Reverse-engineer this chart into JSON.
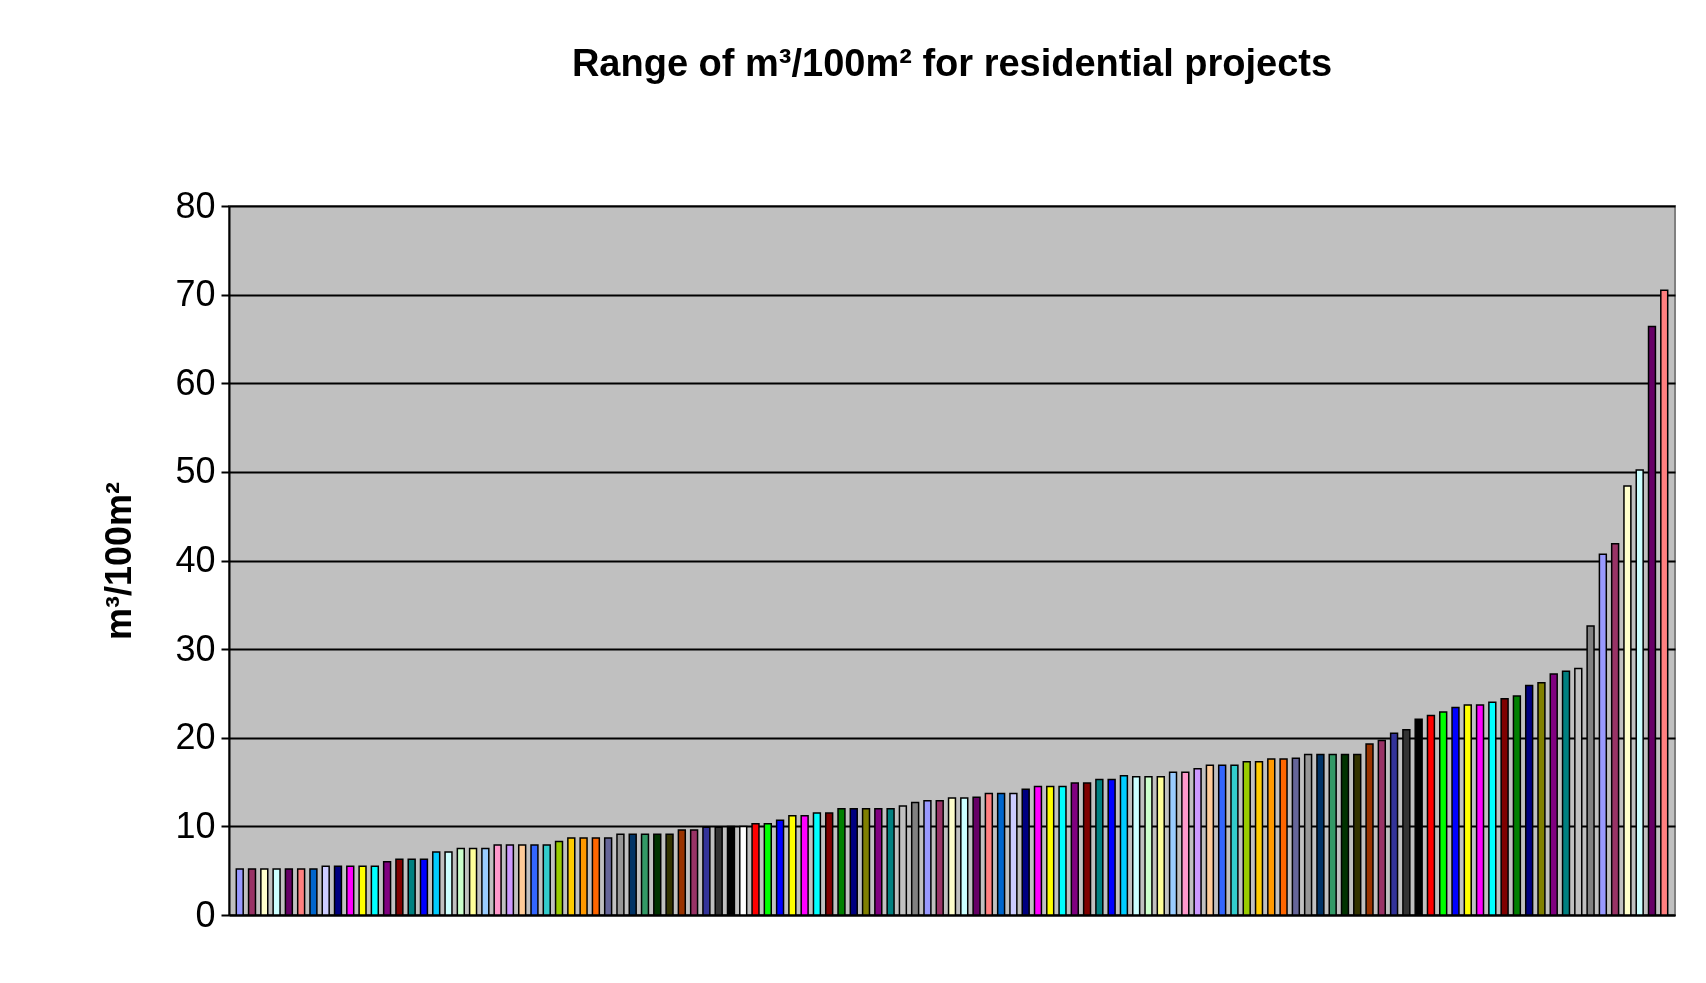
{
  "chart_data": {
    "type": "bar",
    "title": "Range of m³/100m² for residential projects",
    "ylabel": "m³/100m²",
    "categories": [
      null,
      null,
      null,
      null,
      null,
      null,
      null,
      null,
      null,
      null,
      null,
      null,
      null,
      null,
      null,
      null,
      null,
      null,
      null,
      null,
      null,
      null,
      null,
      null,
      null,
      null,
      null,
      null,
      null,
      null,
      null,
      null,
      null,
      null,
      null,
      null,
      null,
      null,
      null,
      null,
      null,
      null,
      null,
      null,
      null,
      null,
      null,
      null,
      null,
      null,
      null,
      null,
      null,
      null,
      null,
      null,
      null,
      null,
      null,
      null,
      null,
      null,
      null,
      null,
      null,
      null,
      null,
      null,
      null,
      null,
      null,
      null,
      null,
      null,
      null,
      null,
      null,
      null,
      null,
      null,
      null,
      null,
      null,
      null,
      null,
      null,
      null,
      null,
      null,
      null,
      null,
      null,
      null,
      null,
      null,
      null,
      null,
      null,
      null,
      null,
      null,
      null,
      null,
      null,
      null,
      null,
      null,
      null,
      null,
      null,
      null,
      null,
      null,
      null,
      null,
      null,
      null
    ],
    "values": [
      5.2,
      5.2,
      5.2,
      5.2,
      5.2,
      5.2,
      5.2,
      5.5,
      5.5,
      5.5,
      5.5,
      5.5,
      6.0,
      6.3,
      6.3,
      6.3,
      7.1,
      7.1,
      7.5,
      7.5,
      7.5,
      7.9,
      7.9,
      7.9,
      7.9,
      7.9,
      8.3,
      8.7,
      8.7,
      8.7,
      8.7,
      9.1,
      9.1,
      9.1,
      9.1,
      9.1,
      9.6,
      9.6,
      9.9,
      9.9,
      10.0,
      10.0,
      10.3,
      10.3,
      10.7,
      11.2,
      11.2,
      11.5,
      11.5,
      12.0,
      12.0,
      12.0,
      12.0,
      12.0,
      12.3,
      12.7,
      12.9,
      12.9,
      13.2,
      13.2,
      13.3,
      13.7,
      13.7,
      13.7,
      14.2,
      14.5,
      14.5,
      14.5,
      14.9,
      14.9,
      15.3,
      15.3,
      15.7,
      15.6,
      15.6,
      15.6,
      16.1,
      16.1,
      16.5,
      16.9,
      16.9,
      16.9,
      17.3,
      17.3,
      17.6,
      17.6,
      17.7,
      18.1,
      18.1,
      18.1,
      18.1,
      18.1,
      19.3,
      19.7,
      20.5,
      20.9,
      22.1,
      22.5,
      22.9,
      23.4,
      23.7,
      23.7,
      24.0,
      24.4,
      24.7,
      25.9,
      26.2,
      27.2,
      27.5,
      27.8,
      32.6,
      40.7,
      41.9,
      48.4,
      50.2,
      66.4,
      70.5
    ],
    "colors": [
      "#9999ff",
      "#993366",
      "#ffffcc",
      "#ccffff",
      "#660066",
      "#ff8080",
      "#0066cc",
      "#ccccff",
      "#000080",
      "#ff00ff",
      "#ffff00",
      "#00ffff",
      "#800080",
      "#800000",
      "#008080",
      "#0000ff",
      "#00ccff",
      "#ccffff",
      "#ccffcc",
      "#ffff99",
      "#99ccff",
      "#ff99cc",
      "#cc99ff",
      "#ffcc99",
      "#3366ff",
      "#33cccc",
      "#99cc00",
      "#ffcc00",
      "#ff9900",
      "#ff6600",
      "#666699",
      "#969696",
      "#003366",
      "#339966",
      "#003300",
      "#333300",
      "#993300",
      "#993366",
      "#333399",
      "#333333",
      "#000000",
      "#ffffff",
      "#ff0000",
      "#00ff00",
      "#0000ff",
      "#ffff00",
      "#ff00ff",
      "#00ffff",
      "#800000",
      "#008000",
      "#000080",
      "#808000",
      "#800080",
      "#008080",
      "#c0c0c0",
      "#808080",
      "#9999ff",
      "#993366",
      "#ffffcc",
      "#ccffff",
      "#660066",
      "#ff8080",
      "#0066cc",
      "#ccccff",
      "#000080",
      "#ff00ff",
      "#ffff00",
      "#00ffff",
      "#800080",
      "#800000",
      "#008080",
      "#0000ff",
      "#00ccff",
      "#ccffff",
      "#ccffcc",
      "#ffff99",
      "#99ccff",
      "#ff99cc",
      "#cc99ff",
      "#ffcc99",
      "#3366ff",
      "#33cccc",
      "#99cc00",
      "#ffcc00",
      "#ff9900",
      "#ff6600",
      "#666699",
      "#969696",
      "#003366",
      "#339966",
      "#003300",
      "#333300",
      "#993300",
      "#993366",
      "#333399",
      "#333333",
      "#000000",
      "#ff0000",
      "#00ff00",
      "#0000ff",
      "#ffff00",
      "#ff00ff",
      "#00ffff",
      "#800000",
      "#008000",
      "#000080",
      "#808000",
      "#800080",
      "#008080",
      "#c0c0c0",
      "#808080",
      "#9999ff",
      "#993366",
      "#ffffcc",
      "#ccffff",
      "#660066",
      "#ff8080"
    ],
    "ylim": [
      0,
      80
    ],
    "yticks": [
      0,
      10,
      20,
      30,
      40,
      50,
      60,
      70,
      80
    ],
    "grid": "y"
  }
}
